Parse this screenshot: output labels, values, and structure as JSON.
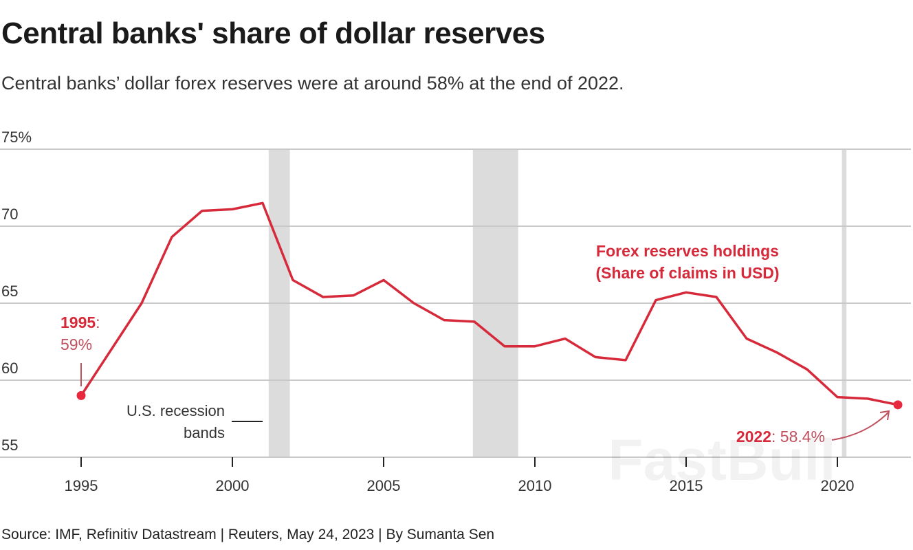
{
  "header": {
    "title": "Central banks' share of dollar reserves",
    "subtitle": "Central banks’ dollar forex reserves were at around 58% at the end of 2022."
  },
  "footer": {
    "source": "Source: IMF, Refinitiv Datastream | Reuters, May 24, 2023 | By Sumanta Sen"
  },
  "watermark": "FastBull",
  "chart_data": {
    "type": "line",
    "title": "Central banks' share of dollar reserves",
    "ylim": [
      55,
      75
    ],
    "xlim": [
      1993.6,
      2023.3
    ],
    "grid": true,
    "y_ticks": [
      55,
      60,
      65,
      70,
      75
    ],
    "y_tick_labels": [
      "55",
      "60",
      "65",
      "70",
      "75%"
    ],
    "x_ticks": [
      1995,
      2000,
      2005,
      2010,
      2015,
      2020
    ],
    "x_tick_labels": [
      "1995",
      "2000",
      "2005",
      "2010",
      "2015",
      "2020"
    ],
    "line_color": "#d62a3b",
    "band_color": "#dcdcdc",
    "series": [
      {
        "name": "Forex reserves holdings (Share of claims in USD)",
        "x": [
          1995,
          1996,
          1997,
          1998,
          1999,
          2000,
          2001,
          2002,
          2003,
          2004,
          2005,
          2006,
          2007,
          2008,
          2009,
          2010,
          2011,
          2012,
          2013,
          2014,
          2015,
          2016,
          2017,
          2018,
          2019,
          2020,
          2021,
          2022
        ],
        "y": [
          59.0,
          62.0,
          65.0,
          69.3,
          71.0,
          71.1,
          71.5,
          66.5,
          65.4,
          65.5,
          66.5,
          65.0,
          63.9,
          63.8,
          62.2,
          62.2,
          62.7,
          61.5,
          61.3,
          65.2,
          65.7,
          65.4,
          62.7,
          61.8,
          60.7,
          58.9,
          58.8,
          58.4
        ]
      }
    ],
    "series_label": [
      "Forex reserves holdings",
      "(Share of claims in USD)"
    ],
    "recession_bands": [
      [
        2001.2,
        2001.9
      ],
      [
        2007.95,
        2009.45
      ],
      [
        2020.15,
        2020.3
      ]
    ],
    "recession_label": [
      "U.S. recession",
      "bands"
    ],
    "annotations": [
      {
        "year": "1995",
        "sep": ":",
        "value": "59%"
      },
      {
        "year": "2022",
        "sep": ":",
        "value": " 58.4%"
      }
    ]
  }
}
